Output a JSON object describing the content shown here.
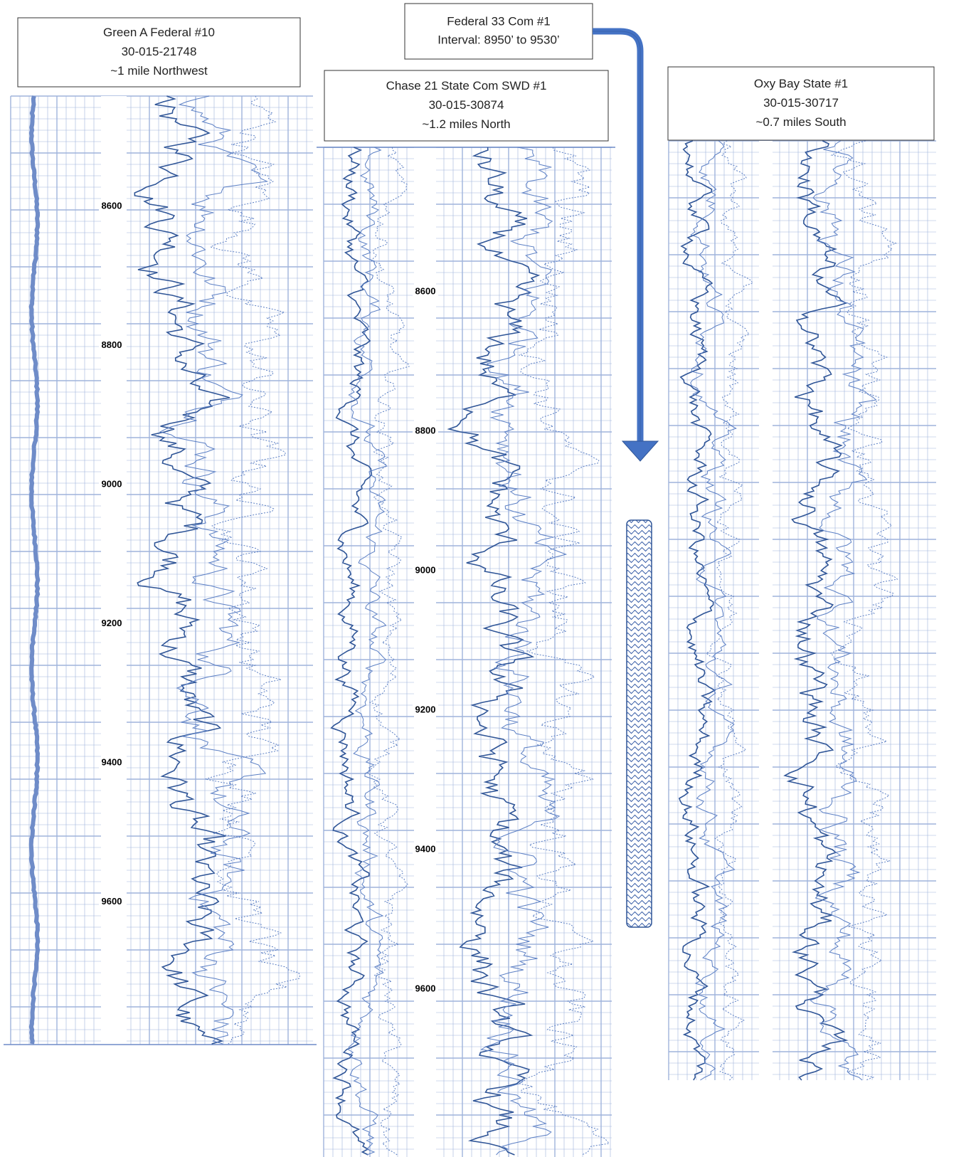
{
  "wells": [
    {
      "title": "Green A Federal #10",
      "api": "30-015-21748",
      "location": "~1 mile Northwest",
      "depths": [
        8600,
        8800,
        9000,
        9200,
        9400,
        9600
      ]
    },
    {
      "title": "Chase 21 State Com SWD #1",
      "api": "30-015-30874",
      "location": "~1.2 miles North",
      "depths": [
        8600,
        8800,
        9000,
        9200,
        9400,
        9600
      ]
    },
    {
      "title": "Oxy Bay State #1",
      "api": "30-015-30717",
      "location": "~0.7 miles South",
      "depths": []
    }
  ],
  "target": {
    "title": "Federal 33 Com #1",
    "interval": "Interval: 8950’ to 9530’"
  }
}
